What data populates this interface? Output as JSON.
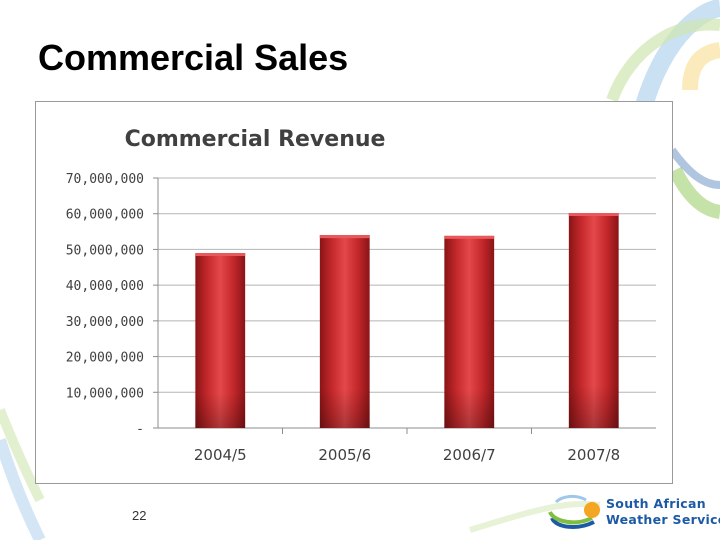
{
  "slide": {
    "title": "Commercial Sales",
    "page_number": "22"
  },
  "logo": {
    "line1": "South African",
    "line2": "Weather Service"
  },
  "colors": {
    "bar": "#c0282b",
    "bar_dark": "#7e1214",
    "bar_light": "#e9585a",
    "gridline": "#b5b5b5",
    "deco_blue": "#1d5aa6",
    "deco_green": "#7fbf3f"
  },
  "chart_data": {
    "type": "bar",
    "title": "Commercial Revenue",
    "xlabel": "",
    "ylabel": "",
    "categories": [
      "2004/5",
      "2005/6",
      "2006/7",
      "2007/8"
    ],
    "values": [
      49000000,
      54000000,
      53800000,
      60200000
    ],
    "ylim": [
      0,
      70000000
    ],
    "y_ticks": [
      0,
      10000000,
      20000000,
      30000000,
      40000000,
      50000000,
      60000000,
      70000000
    ],
    "y_tick_labels": [
      "-",
      "10,000,000",
      "20,000,000",
      "30,000,000",
      "40,000,000",
      "50,000,000",
      "60,000,000",
      "70,000,000"
    ],
    "grid": true,
    "legend": "none"
  }
}
